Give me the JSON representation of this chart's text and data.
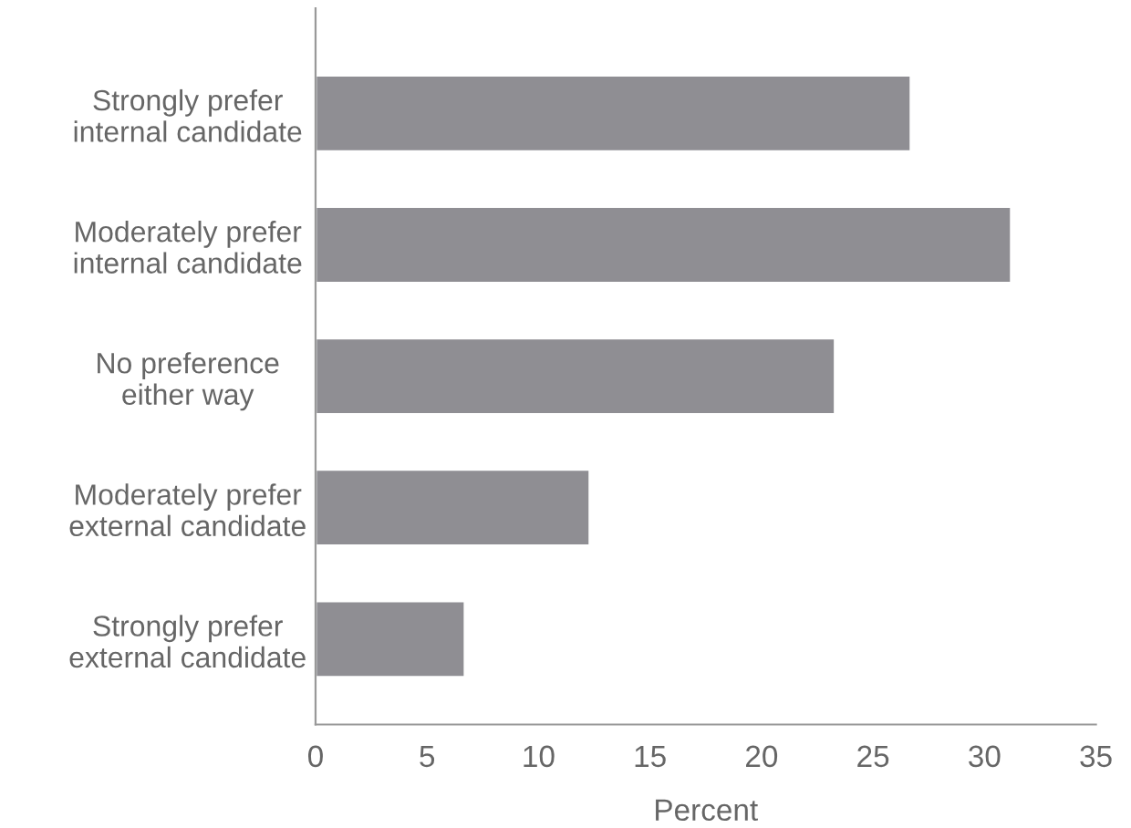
{
  "chart_data": {
    "type": "bar",
    "orientation": "horizontal",
    "categories": [
      "Strongly prefer\ninternal candidate",
      "Moderately prefer\ninternal candidate",
      "No preference\neither way",
      "Moderately prefer\nexternal candidate",
      "Strongly prefer\nexternal candidate"
    ],
    "values": [
      26.7,
      31.2,
      23.3,
      12.3,
      6.7
    ],
    "color": "#8f8e93",
    "xlabel": "Percent",
    "xlim": [
      0,
      35
    ],
    "xticks": [
      0,
      5,
      10,
      15,
      20,
      25,
      30,
      35
    ],
    "grid": false,
    "legend": false
  }
}
